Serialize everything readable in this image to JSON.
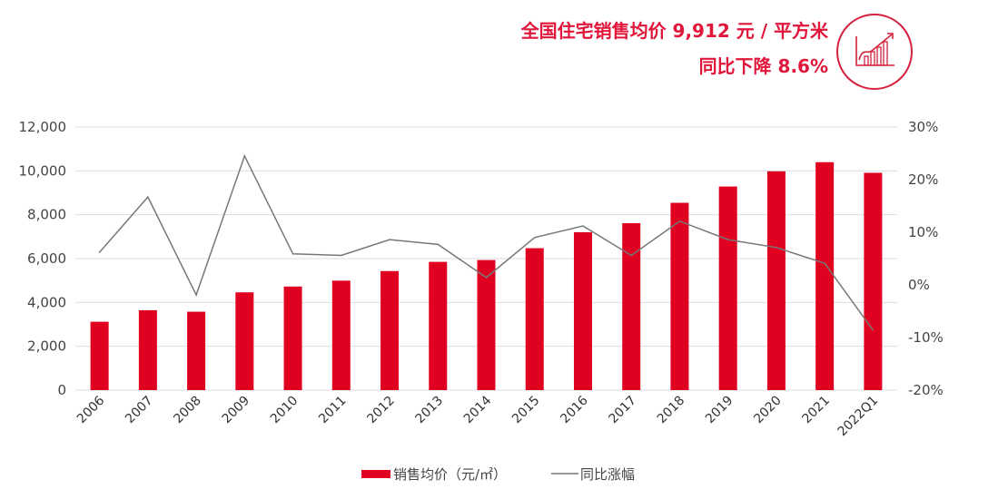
{
  "header": {
    "headline": "全国住宅销售均价 9,912 元 / 平方米",
    "subline": "同比下降 8.6%",
    "icon": "rising-bar-chart-icon",
    "accent_color": "#e0163a"
  },
  "chart_data": {
    "type": "bar+line",
    "categories": [
      "2006",
      "2007",
      "2008",
      "2009",
      "2010",
      "2011",
      "2012",
      "2013",
      "2014",
      "2015",
      "2016",
      "2017",
      "2018",
      "2019",
      "2020",
      "2021",
      "2022Q1"
    ],
    "series": [
      {
        "name": "销售均价（元/㎡）",
        "type": "bar",
        "axis": "left",
        "color": "#e0001f",
        "values": [
          3119,
          3645,
          3576,
          4459,
          4725,
          4993,
          5430,
          5850,
          5933,
          6473,
          7203,
          7614,
          8544,
          9287,
          9980,
          10396,
          9912
        ]
      },
      {
        "name": "同比涨幅",
        "type": "line",
        "axis": "right",
        "color": "#777777",
        "values": [
          6.2,
          16.7,
          -1.9,
          24.5,
          5.9,
          5.6,
          8.6,
          7.7,
          1.4,
          9.0,
          11.2,
          5.6,
          12.1,
          8.6,
          7.1,
          4.1,
          -8.6
        ]
      }
    ],
    "left_axis": {
      "ylim": [
        0,
        12000
      ],
      "ticks": [
        "0",
        "2,000",
        "4,000",
        "6,000",
        "8,000",
        "10,000",
        "12,000"
      ]
    },
    "right_axis": {
      "ylim": [
        -20,
        30
      ],
      "ticks": [
        "-20%",
        "-10%",
        "0%",
        "10%",
        "20%",
        "30%"
      ]
    },
    "grid": true,
    "legend_position": "bottom"
  }
}
